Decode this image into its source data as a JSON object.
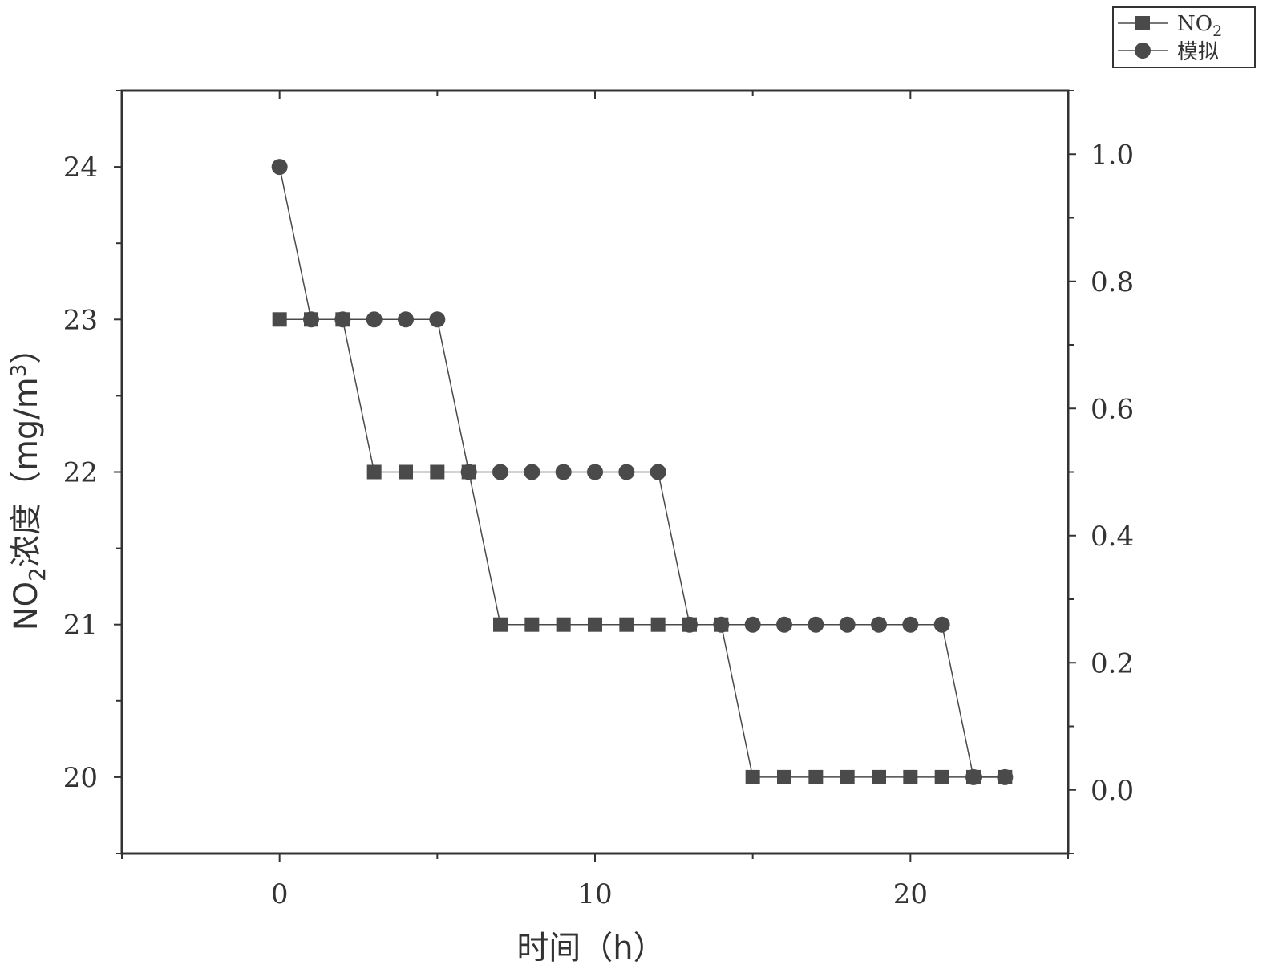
{
  "chart_data": {
    "type": "line",
    "xlabel": "时间（h）",
    "ylabel": {
      "prefix": "NO",
      "subscript": "2",
      "middle": "浓度（mg/m",
      "superscript": "3",
      "suffix": "）"
    },
    "xlim": [
      -5,
      25
    ],
    "ylim": [
      19.5,
      24.5
    ],
    "y2lim": [
      -0.1,
      1.1
    ],
    "xticks": [
      0,
      10,
      20
    ],
    "xtick_labels": [
      "0",
      "10",
      "20"
    ],
    "yticks": [
      20,
      21,
      22,
      23,
      24
    ],
    "ytick_labels": [
      "20",
      "21",
      "22",
      "23",
      "24"
    ],
    "y2ticks": [
      0,
      0.2,
      0.4,
      0.6,
      0.8,
      1.0
    ],
    "y2tick_labels": [
      "0.0",
      "0.2",
      "0.4",
      "0.6",
      "0.8",
      "1.0"
    ],
    "grid": false,
    "legend_position": "top-right",
    "colors": {
      "series": "#4a4a4a",
      "axis": "#333333"
    },
    "series": [
      {
        "name_main": "NO",
        "name_sub": "2",
        "marker": "square",
        "x": [
          0,
          1,
          2,
          3,
          4,
          5,
          6,
          7,
          8,
          9,
          10,
          11,
          12,
          13,
          14,
          15,
          16,
          17,
          18,
          19,
          20,
          21,
          22,
          23
        ],
        "y": [
          23,
          23,
          23,
          22,
          22,
          22,
          22,
          21,
          21,
          21,
          21,
          21,
          21,
          21,
          21,
          20,
          20,
          20,
          20,
          20,
          20,
          20,
          20,
          20
        ]
      },
      {
        "name_main": "模拟",
        "name_sub": "",
        "marker": "circle",
        "x": [
          0,
          1,
          2,
          3,
          4,
          5,
          6,
          7,
          8,
          9,
          10,
          11,
          12,
          13,
          14,
          15,
          16,
          17,
          18,
          19,
          20,
          21,
          22,
          23
        ],
        "y": [
          24,
          23,
          23,
          23,
          23,
          23,
          22,
          22,
          22,
          22,
          22,
          22,
          22,
          21,
          21,
          21,
          21,
          21,
          21,
          21,
          21,
          21,
          20,
          20
        ]
      }
    ]
  }
}
